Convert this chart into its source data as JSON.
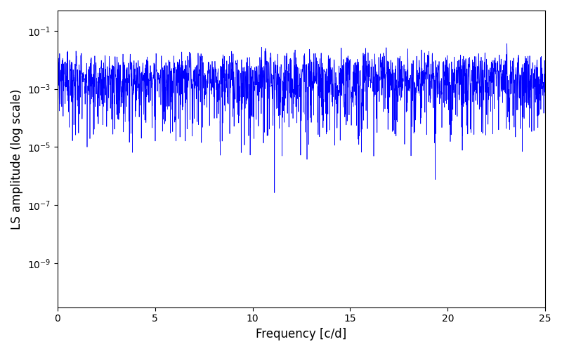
{
  "xlabel": "Frequency [c/d]",
  "ylabel": "LS amplitude (log scale)",
  "xlim": [
    0,
    25
  ],
  "ylim": [
    3e-11,
    0.5
  ],
  "line_color": "#0000ff",
  "line_width": 0.5,
  "figsize": [
    8.0,
    5.0
  ],
  "dpi": 100,
  "n_points": 8000,
  "seed": 12345,
  "freq_max": 25.0,
  "background_color": "#ffffff"
}
